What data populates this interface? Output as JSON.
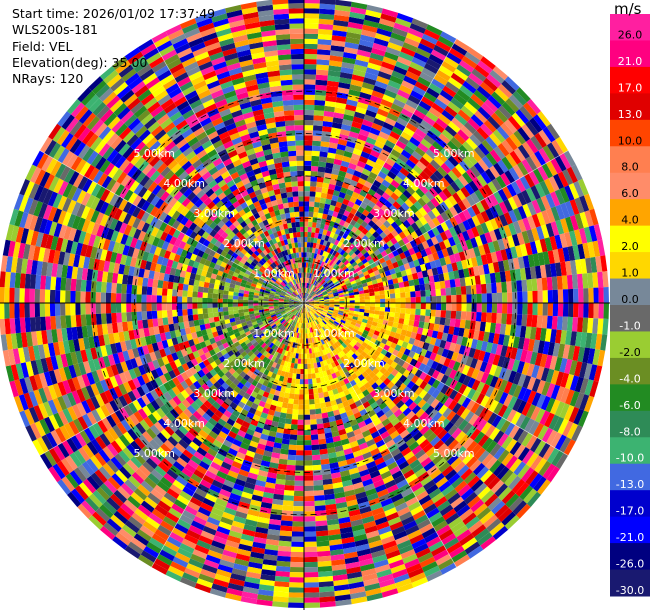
{
  "info": {
    "start_time": "Start time: 2026/01/02 17:37:49",
    "instrument": "WLS200s-181",
    "field": "Field: VEL",
    "elevation": "Elevation(deg): 35.00",
    "nrays": "NRays: 120"
  },
  "colorbar": {
    "unit": "m/s",
    "ticks": [
      "26.0",
      "21.0",
      "17.0",
      "13.0",
      "10.0",
      "8.0",
      "6.0",
      "4.0",
      "2.0",
      "1.0",
      "0.0",
      "-1.0",
      "-2.0",
      "-4.0",
      "-6.0",
      "-8.0",
      "-10.0",
      "-13.0",
      "-17.0",
      "-21.0",
      "-26.0",
      "-30.0"
    ],
    "colors": [
      "#ff1fa0",
      "#ff0080",
      "#ff0000",
      "#e00000",
      "#ff4500",
      "#ff7f50",
      "#ff8c69",
      "#ffa500",
      "#ffff00",
      "#ffd700",
      "#778899",
      "#696969",
      "#9acd32",
      "#6b8e23",
      "#228b22",
      "#2e8b57",
      "#3cb371",
      "#4169e1",
      "#0000cd",
      "#0000ff",
      "#000080",
      "#191970"
    ]
  },
  "chart_data": {
    "type": "heatmap",
    "title": "",
    "field": "VEL",
    "units": "m/s",
    "nrays": 120,
    "elevation_deg": 35.0,
    "range_rings": [
      "1.00km",
      "2.00km",
      "3.00km",
      "4.00km",
      "5.00km"
    ],
    "color_scale": [
      -30.0,
      26.0
    ],
    "description_values": "Doppler radial velocity PPI; near-range sector to the south-east dominated by +1 to +4 m/s (yellow), near range to the west -1 to -4 m/s (green), outer ranges noisy across full scale."
  }
}
